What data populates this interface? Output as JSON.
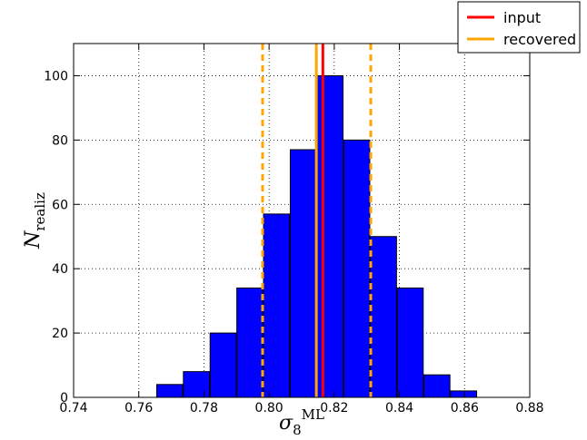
{
  "chart_data": {
    "type": "bar",
    "title": "",
    "xlabel": "σ8^ML",
    "xlabel_base": "σ",
    "xlabel_sub": "8",
    "xlabel_sup": "ML",
    "ylabel": "N_realiz",
    "ylabel_base": "N",
    "ylabel_sub": "realiz",
    "xlim": [
      0.74,
      0.88
    ],
    "ylim": [
      0,
      110
    ],
    "xticks": [
      "0.74",
      "0.76",
      "0.78",
      "0.80",
      "0.82",
      "0.84",
      "0.86",
      "0.88"
    ],
    "xtick_values": [
      0.74,
      0.76,
      0.78,
      0.8,
      0.82,
      0.84,
      0.86,
      0.88
    ],
    "yticks": [
      "0",
      "20",
      "40",
      "60",
      "80",
      "100"
    ],
    "ytick_values": [
      0,
      20,
      40,
      60,
      80,
      100
    ],
    "grid": true,
    "bar_color": "#0000ff",
    "bins": [
      {
        "left": 0.7655,
        "right": 0.7735,
        "value": 4
      },
      {
        "left": 0.7737,
        "right": 0.7817,
        "value": 8
      },
      {
        "left": 0.7819,
        "right": 0.7899,
        "value": 20
      },
      {
        "left": 0.7901,
        "right": 0.7981,
        "value": 34
      },
      {
        "left": 0.7983,
        "right": 0.8063,
        "value": 57
      },
      {
        "left": 0.8065,
        "right": 0.8145,
        "value": 77
      },
      {
        "left": 0.8147,
        "right": 0.8227,
        "value": 100
      },
      {
        "left": 0.8229,
        "right": 0.8309,
        "value": 80
      },
      {
        "left": 0.8311,
        "right": 0.8391,
        "value": 50
      },
      {
        "left": 0.8393,
        "right": 0.8473,
        "value": 34
      },
      {
        "left": 0.8475,
        "right": 0.8555,
        "value": 7
      },
      {
        "left": 0.8557,
        "right": 0.8637,
        "value": 2
      }
    ],
    "vlines": [
      {
        "name": "input",
        "x": 0.8165,
        "color": "#ff0000",
        "style": "solid"
      },
      {
        "name": "recovered",
        "x": 0.8145,
        "color": "#ffa500",
        "style": "solid"
      },
      {
        "name": "recovered-lower",
        "x": 0.798,
        "color": "#ffa500",
        "style": "dashed"
      },
      {
        "name": "recovered-upper",
        "x": 0.8312,
        "color": "#ffa500",
        "style": "dashed"
      }
    ],
    "legend": {
      "placement": "top-right",
      "entries": [
        {
          "label": "input",
          "color": "#ff0000"
        },
        {
          "label": "recovered",
          "color": "#ffa500"
        }
      ]
    }
  }
}
